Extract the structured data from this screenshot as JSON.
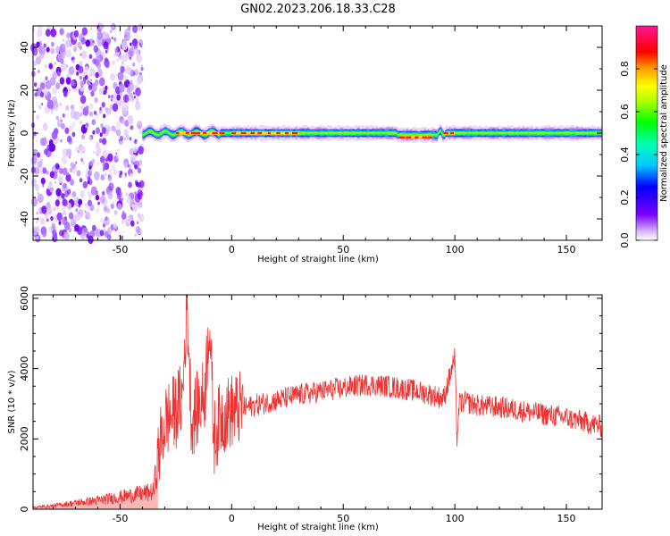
{
  "chart_data": [
    {
      "type": "heatmap",
      "title": "GN02.2023.206.18.33.C28",
      "xlabel": "Height of straight line (km)",
      "ylabel": "Frequency (Hz)",
      "xlim": [
        -89,
        166
      ],
      "ylim": [
        -50,
        50
      ],
      "xticks": [
        -50,
        0,
        50,
        100,
        150
      ],
      "yticks": [
        -40,
        -20,
        0,
        20,
        40
      ],
      "colorbar": {
        "label": "Normalized spectral amplitude",
        "range": [
          0,
          1
        ],
        "ticks": [
          "0.0",
          "0.2",
          "0.4",
          "0.6",
          "0.8"
        ],
        "colormap": "rainbow (violet-blue-cyan-green-yellow-orange-red-magenta)"
      },
      "features": {
        "noise_region_x": [
          -89,
          -40
        ],
        "signal_start_x": -40,
        "center_frequency_hz": 0,
        "peak_segments": [
          {
            "x": [
              -25,
              -5
            ],
            "freq_hz": 0
          },
          {
            "x": [
              0,
              30
            ],
            "freq_hz": 0
          },
          {
            "x": [
              75,
              90
            ],
            "freq_hz": -2
          },
          {
            "x": [
              95,
              100
            ],
            "freq_hz": 0
          }
        ]
      }
    },
    {
      "type": "line",
      "title": "",
      "xlabel": "Height of straight line (km)",
      "ylabel": "SNR (10 * v/v)",
      "xlim": [
        -89,
        166
      ],
      "ylim": [
        0,
        6100
      ],
      "xticks": [
        -50,
        0,
        50,
        100,
        150
      ],
      "yticks": [
        0,
        2000,
        4000,
        6000
      ],
      "color": "#ee3333",
      "series": [
        {
          "name": "",
          "x": [
            -89,
            -80,
            -70,
            -60,
            -50,
            -40,
            -35,
            -33,
            -30,
            -25,
            -22,
            -20,
            -18,
            -15,
            -12,
            -10,
            -8,
            -5,
            0,
            10,
            20,
            30,
            40,
            50,
            60,
            70,
            80,
            90,
            95,
            100,
            101,
            102,
            105,
            110,
            120,
            130,
            140,
            150,
            160,
            166
          ],
          "y": [
            50,
            100,
            180,
            250,
            350,
            450,
            500,
            1500,
            2500,
            2800,
            3200,
            6000,
            2500,
            2900,
            3300,
            5500,
            2000,
            2600,
            2800,
            2950,
            3100,
            3250,
            3350,
            3450,
            3550,
            3500,
            3400,
            3250,
            3150,
            4300,
            2000,
            3000,
            3050,
            2950,
            2900,
            2800,
            2700,
            2600,
            2450,
            2350
          ]
        }
      ]
    }
  ]
}
